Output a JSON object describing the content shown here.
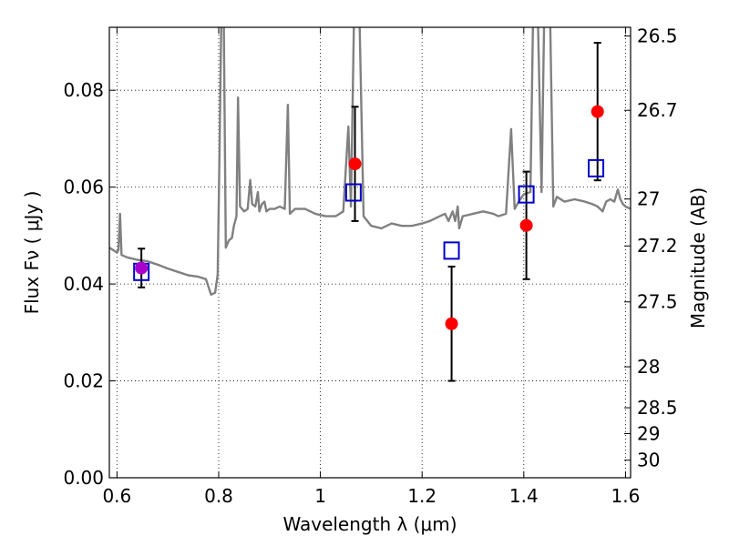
{
  "chart_data": {
    "type": "scatter",
    "xlabel": "Wavelength  λ (μm)",
    "ylabel": "Flux  Fν  ( μJy )",
    "ylabel_right": "Magnitude (AB)",
    "xlim": [
      0.585,
      1.61
    ],
    "ylim": [
      0.0,
      0.093
    ],
    "x_ticks": [
      0.6,
      0.8,
      1.0,
      1.2,
      1.4,
      1.6
    ],
    "x_tick_labels": [
      "0.6",
      "0.8",
      "1",
      "1.2",
      "1.4",
      "1.6"
    ],
    "y_ticks": [
      0.0,
      0.02,
      0.04,
      0.06,
      0.08
    ],
    "y_tick_labels": [
      "0.00",
      "0.02",
      "0.04",
      "0.06",
      "0.08"
    ],
    "right_ticks": [
      {
        "label": "26.5",
        "value": 26.5
      },
      {
        "label": "26.7",
        "value": 26.7
      },
      {
        "label": "27",
        "value": 27.0
      },
      {
        "label": "27.2",
        "value": 27.2
      },
      {
        "label": "27.5",
        "value": 27.5
      },
      {
        "label": "28",
        "value": 28.0
      },
      {
        "label": "28.5",
        "value": 28.5
      },
      {
        "label": "29",
        "value": 29.0
      },
      {
        "label": "30",
        "value": 30.0
      }
    ],
    "grid": true,
    "series": [
      {
        "kind": "line",
        "color": "#808080",
        "points": [
          [
            0.585,
            0.0475
          ],
          [
            0.6,
            0.0465
          ],
          [
            0.603,
            0.047
          ],
          [
            0.606,
            0.0545
          ],
          [
            0.609,
            0.046
          ],
          [
            0.62,
            0.0455
          ],
          [
            0.64,
            0.045
          ],
          [
            0.66,
            0.0447
          ],
          [
            0.68,
            0.044
          ],
          [
            0.7,
            0.0432
          ],
          [
            0.72,
            0.0425
          ],
          [
            0.74,
            0.0418
          ],
          [
            0.76,
            0.0415
          ],
          [
            0.775,
            0.041
          ],
          [
            0.785,
            0.0378
          ],
          [
            0.793,
            0.0382
          ],
          [
            0.798,
            0.042
          ],
          [
            0.802,
            0.07
          ],
          [
            0.805,
            0.094
          ],
          [
            0.81,
            0.094
          ],
          [
            0.814,
            0.0475
          ],
          [
            0.82,
            0.049
          ],
          [
            0.826,
            0.0495
          ],
          [
            0.83,
            0.052
          ],
          [
            0.835,
            0.054
          ],
          [
            0.838,
            0.0785
          ],
          [
            0.842,
            0.056
          ],
          [
            0.85,
            0.055
          ],
          [
            0.857,
            0.0555
          ],
          [
            0.862,
            0.0615
          ],
          [
            0.866,
            0.0565
          ],
          [
            0.872,
            0.056
          ],
          [
            0.877,
            0.059
          ],
          [
            0.88,
            0.055
          ],
          [
            0.885,
            0.0565
          ],
          [
            0.89,
            0.057
          ],
          [
            0.894,
            0.055
          ],
          [
            0.9,
            0.0555
          ],
          [
            0.91,
            0.0555
          ],
          [
            0.92,
            0.056
          ],
          [
            0.93,
            0.0555
          ],
          [
            0.936,
            0.077
          ],
          [
            0.94,
            0.0545
          ],
          [
            0.95,
            0.0555
          ],
          [
            0.97,
            0.0555
          ],
          [
            0.99,
            0.0545
          ],
          [
            1.01,
            0.054
          ],
          [
            1.03,
            0.054
          ],
          [
            1.045,
            0.055
          ],
          [
            1.055,
            0.0725
          ],
          [
            1.06,
            0.056
          ],
          [
            1.066,
            0.094
          ],
          [
            1.077,
            0.094
          ],
          [
            1.085,
            0.054
          ],
          [
            1.1,
            0.052
          ],
          [
            1.12,
            0.0515
          ],
          [
            1.14,
            0.0525
          ],
          [
            1.16,
            0.052
          ],
          [
            1.18,
            0.052
          ],
          [
            1.2,
            0.0525
          ],
          [
            1.215,
            0.053
          ],
          [
            1.225,
            0.0535
          ],
          [
            1.235,
            0.054
          ],
          [
            1.245,
            0.0545
          ],
          [
            1.252,
            0.053
          ],
          [
            1.26,
            0.055
          ],
          [
            1.265,
            0.053
          ],
          [
            1.27,
            0.056
          ],
          [
            1.273,
            0.0515
          ],
          [
            1.28,
            0.054
          ],
          [
            1.3,
            0.0545
          ],
          [
            1.32,
            0.055
          ],
          [
            1.34,
            0.0545
          ],
          [
            1.35,
            0.054
          ],
          [
            1.365,
            0.0545
          ],
          [
            1.375,
            0.072
          ],
          [
            1.382,
            0.0555
          ],
          [
            1.39,
            0.057
          ],
          [
            1.4,
            0.0585
          ],
          [
            1.413,
            0.059
          ],
          [
            1.418,
            0.094
          ],
          [
            1.428,
            0.094
          ],
          [
            1.435,
            0.059
          ],
          [
            1.44,
            0.094
          ],
          [
            1.452,
            0.094
          ],
          [
            1.458,
            0.056
          ],
          [
            1.465,
            0.058
          ],
          [
            1.48,
            0.057
          ],
          [
            1.5,
            0.0575
          ],
          [
            1.52,
            0.057
          ],
          [
            1.535,
            0.0565
          ],
          [
            1.545,
            0.056
          ],
          [
            1.555,
            0.055
          ],
          [
            1.562,
            0.057
          ],
          [
            1.57,
            0.0575
          ],
          [
            1.578,
            0.057
          ],
          [
            1.585,
            0.0595
          ],
          [
            1.59,
            0.0575
          ],
          [
            1.595,
            0.0565
          ],
          [
            1.6,
            0.056
          ],
          [
            1.61,
            0.0555
          ]
        ]
      },
      {
        "kind": "points",
        "marker": "circle",
        "color": "#ff0000",
        "x": [
          0.648,
          1.068,
          1.258,
          1.405,
          1.545
        ],
        "y": [
          0.0433,
          0.0648,
          0.0318,
          0.0521,
          0.0756
        ],
        "err_low": [
          0.004,
          0.0118,
          0.0118,
          0.0111,
          0.0142
        ],
        "err_high": [
          0.004,
          0.0118,
          0.0118,
          0.0111,
          0.0142
        ]
      },
      {
        "kind": "points",
        "marker": "square",
        "color": "#0000cc",
        "x": [
          0.648,
          1.065,
          1.258,
          1.405,
          1.542
        ],
        "y": [
          0.0425,
          0.0589,
          0.0469,
          0.0585,
          0.0639
        ]
      }
    ],
    "highlight_color": "#aa00cc"
  }
}
